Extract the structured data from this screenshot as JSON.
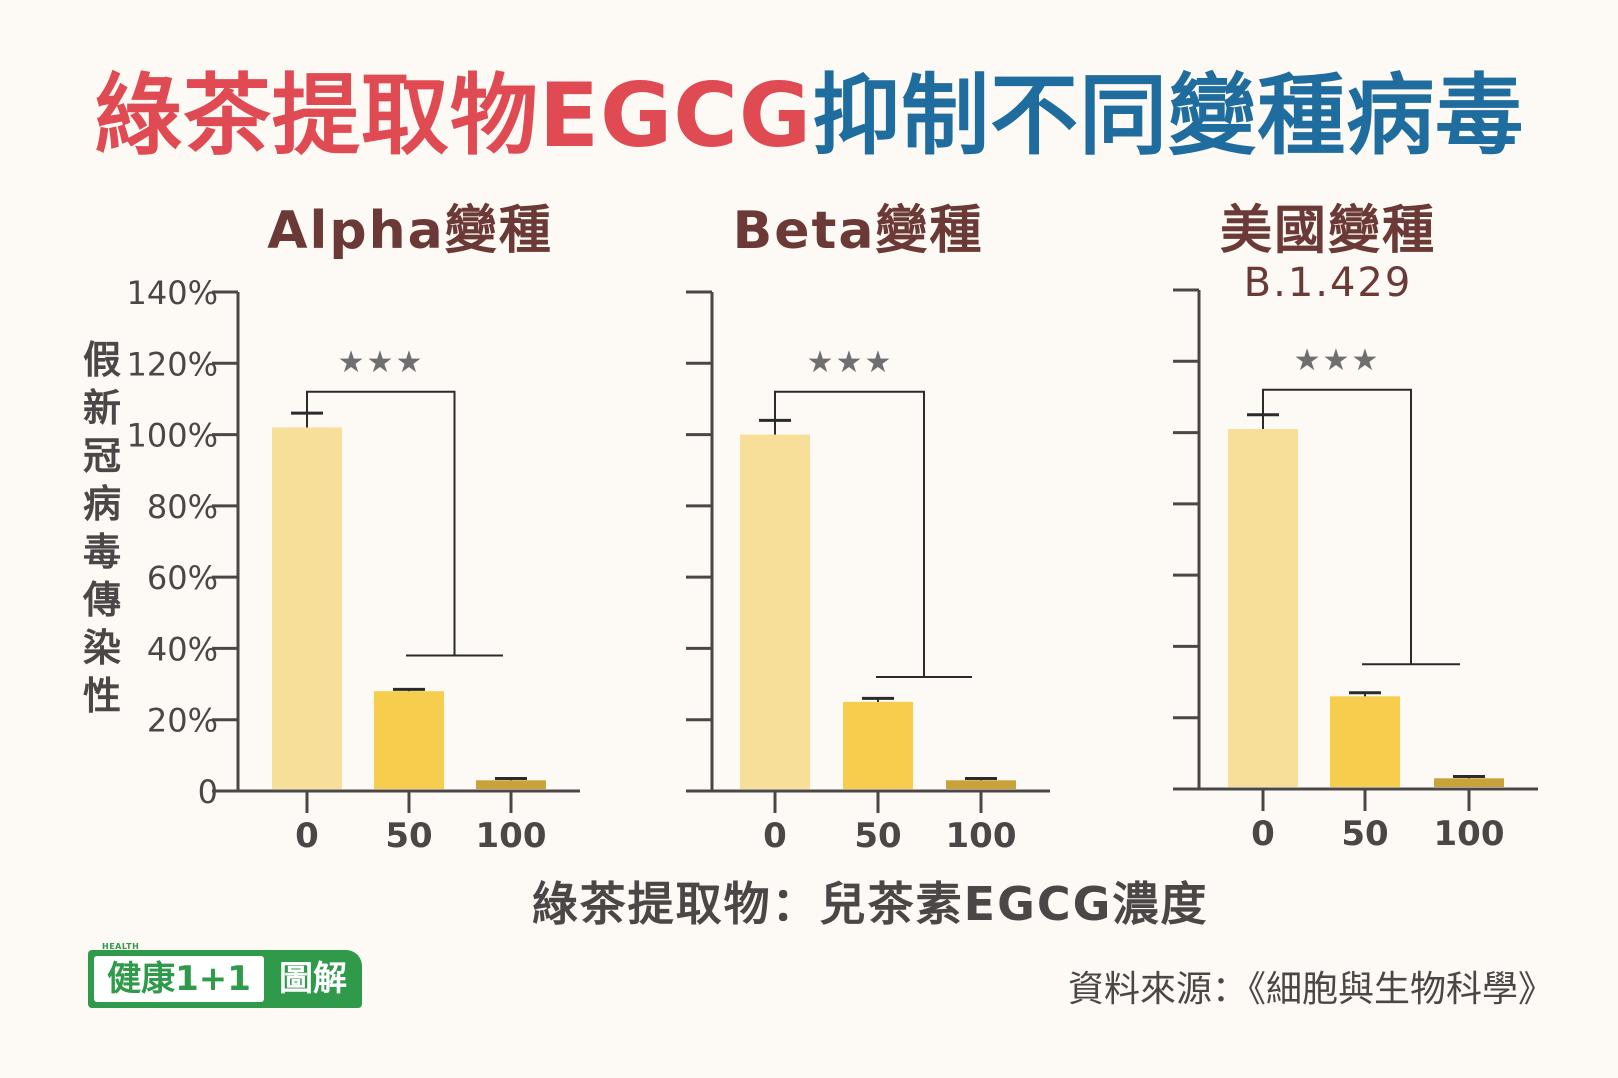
{
  "title": {
    "part_a": "綠茶提取物EGCG",
    "part_b": "抑制不同變種病毒"
  },
  "ylabel": "假新冠病毒傳染性",
  "xlabel": "綠茶提取物：兒茶素EGCG濃度",
  "source": "資料來源：《細胞與生物科學》",
  "logo": {
    "small": "HEALTH",
    "left": "健康1+1",
    "right": "圖解"
  },
  "colors": {
    "title_red": "#e04a52",
    "title_blue": "#1f6d9e",
    "panel_title": "#6b3a37",
    "axis": "#4b4747",
    "significance": "#6f6f6f",
    "bar_0": "#f8df99",
    "bar_50": "#f7cd4e",
    "bar_100": "#c9a23a",
    "logo_green": "#2e9a4a"
  },
  "chart_data": [
    {
      "type": "bar",
      "title": "Alpha變種",
      "subtitle": "",
      "categories": [
        "0",
        "50",
        "100"
      ],
      "values": [
        102,
        28,
        3
      ],
      "errors": [
        4,
        0.5,
        0.5
      ],
      "ylim": [
        0,
        140
      ],
      "yticks": [
        0,
        20,
        40,
        60,
        80,
        100,
        120,
        140
      ],
      "ytick_labels": [
        "0",
        "20%",
        "40%",
        "60%",
        "80%",
        "100%",
        "120%",
        "140%"
      ],
      "significance": {
        "label": "★★★",
        "left_top": 112,
        "right_top": 38
      }
    },
    {
      "type": "bar",
      "title": "Beta變種",
      "subtitle": "",
      "categories": [
        "0",
        "50",
        "100"
      ],
      "values": [
        100,
        25,
        3
      ],
      "errors": [
        4,
        1,
        0.5
      ],
      "ylim": [
        0,
        140
      ],
      "yticks": [
        0,
        20,
        40,
        60,
        80,
        100,
        120,
        140
      ],
      "ytick_labels": [],
      "significance": {
        "label": "★★★",
        "left_top": 112,
        "right_top": 32
      }
    },
    {
      "type": "bar",
      "title": "美國變種",
      "subtitle": "B.1.429",
      "categories": [
        "0",
        "50",
        "100"
      ],
      "values": [
        101,
        26,
        3
      ],
      "errors": [
        4,
        1,
        0.5
      ],
      "ylim": [
        0,
        140
      ],
      "yticks": [
        0,
        20,
        40,
        60,
        80,
        100,
        120,
        140
      ],
      "ytick_labels": [],
      "significance": {
        "label": "★★★",
        "left_top": 112,
        "right_top": 35
      }
    }
  ]
}
